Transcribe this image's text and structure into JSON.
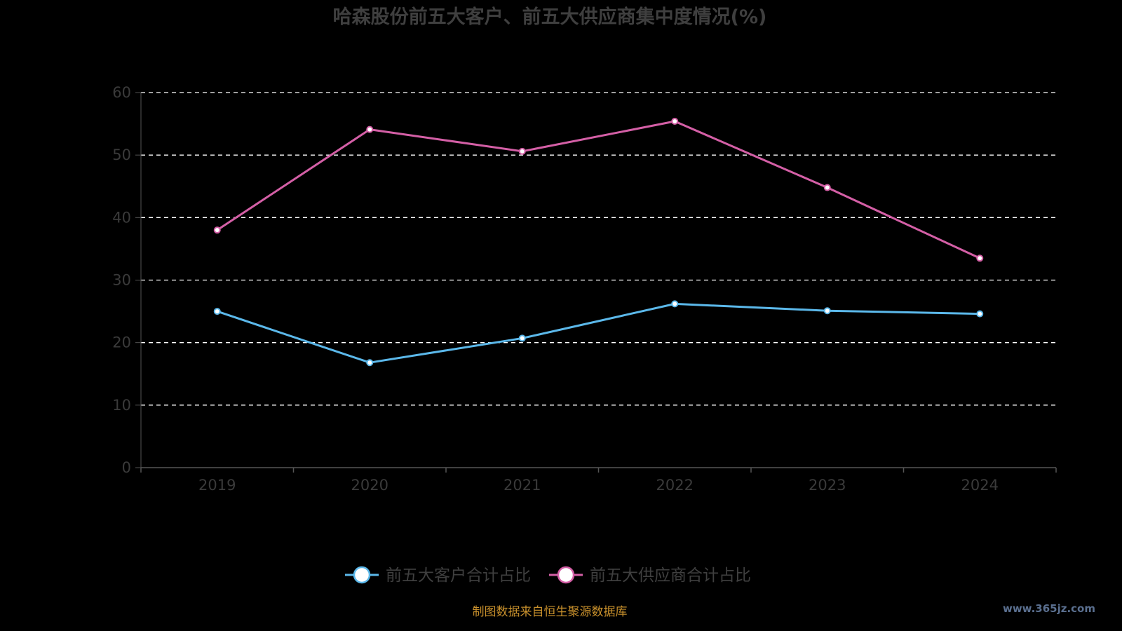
{
  "chart_data": {
    "type": "line",
    "title": "哈森股份前五大客户、前五大供应商集中度情况(%)",
    "xlabel": "",
    "ylabel": "",
    "categories": [
      "2019",
      "2020",
      "2021",
      "2022",
      "2023",
      "2024"
    ],
    "ylim": [
      0,
      60
    ],
    "yticks": [
      0,
      10,
      20,
      30,
      40,
      50,
      60
    ],
    "grid": true,
    "grid_style": "dashed",
    "legend_position": "bottom-center",
    "series": [
      {
        "name": "前五大客户合计占比",
        "color": "#5bb8ea",
        "values": [
          25.0,
          16.8,
          20.7,
          26.2,
          25.1,
          24.6
        ]
      },
      {
        "name": "前五大供应商合计占比",
        "color": "#d45fa6",
        "values": [
          38.0,
          54.1,
          50.6,
          55.4,
          44.8,
          33.5
        ]
      }
    ]
  },
  "footer": {
    "source": "制图数据来自恒生聚源数据库",
    "watermark": "www.365jz.com"
  },
  "colors": {
    "background": "#000000",
    "axis": "#555555",
    "grid": "#ffffff",
    "source": "#c8902c"
  }
}
